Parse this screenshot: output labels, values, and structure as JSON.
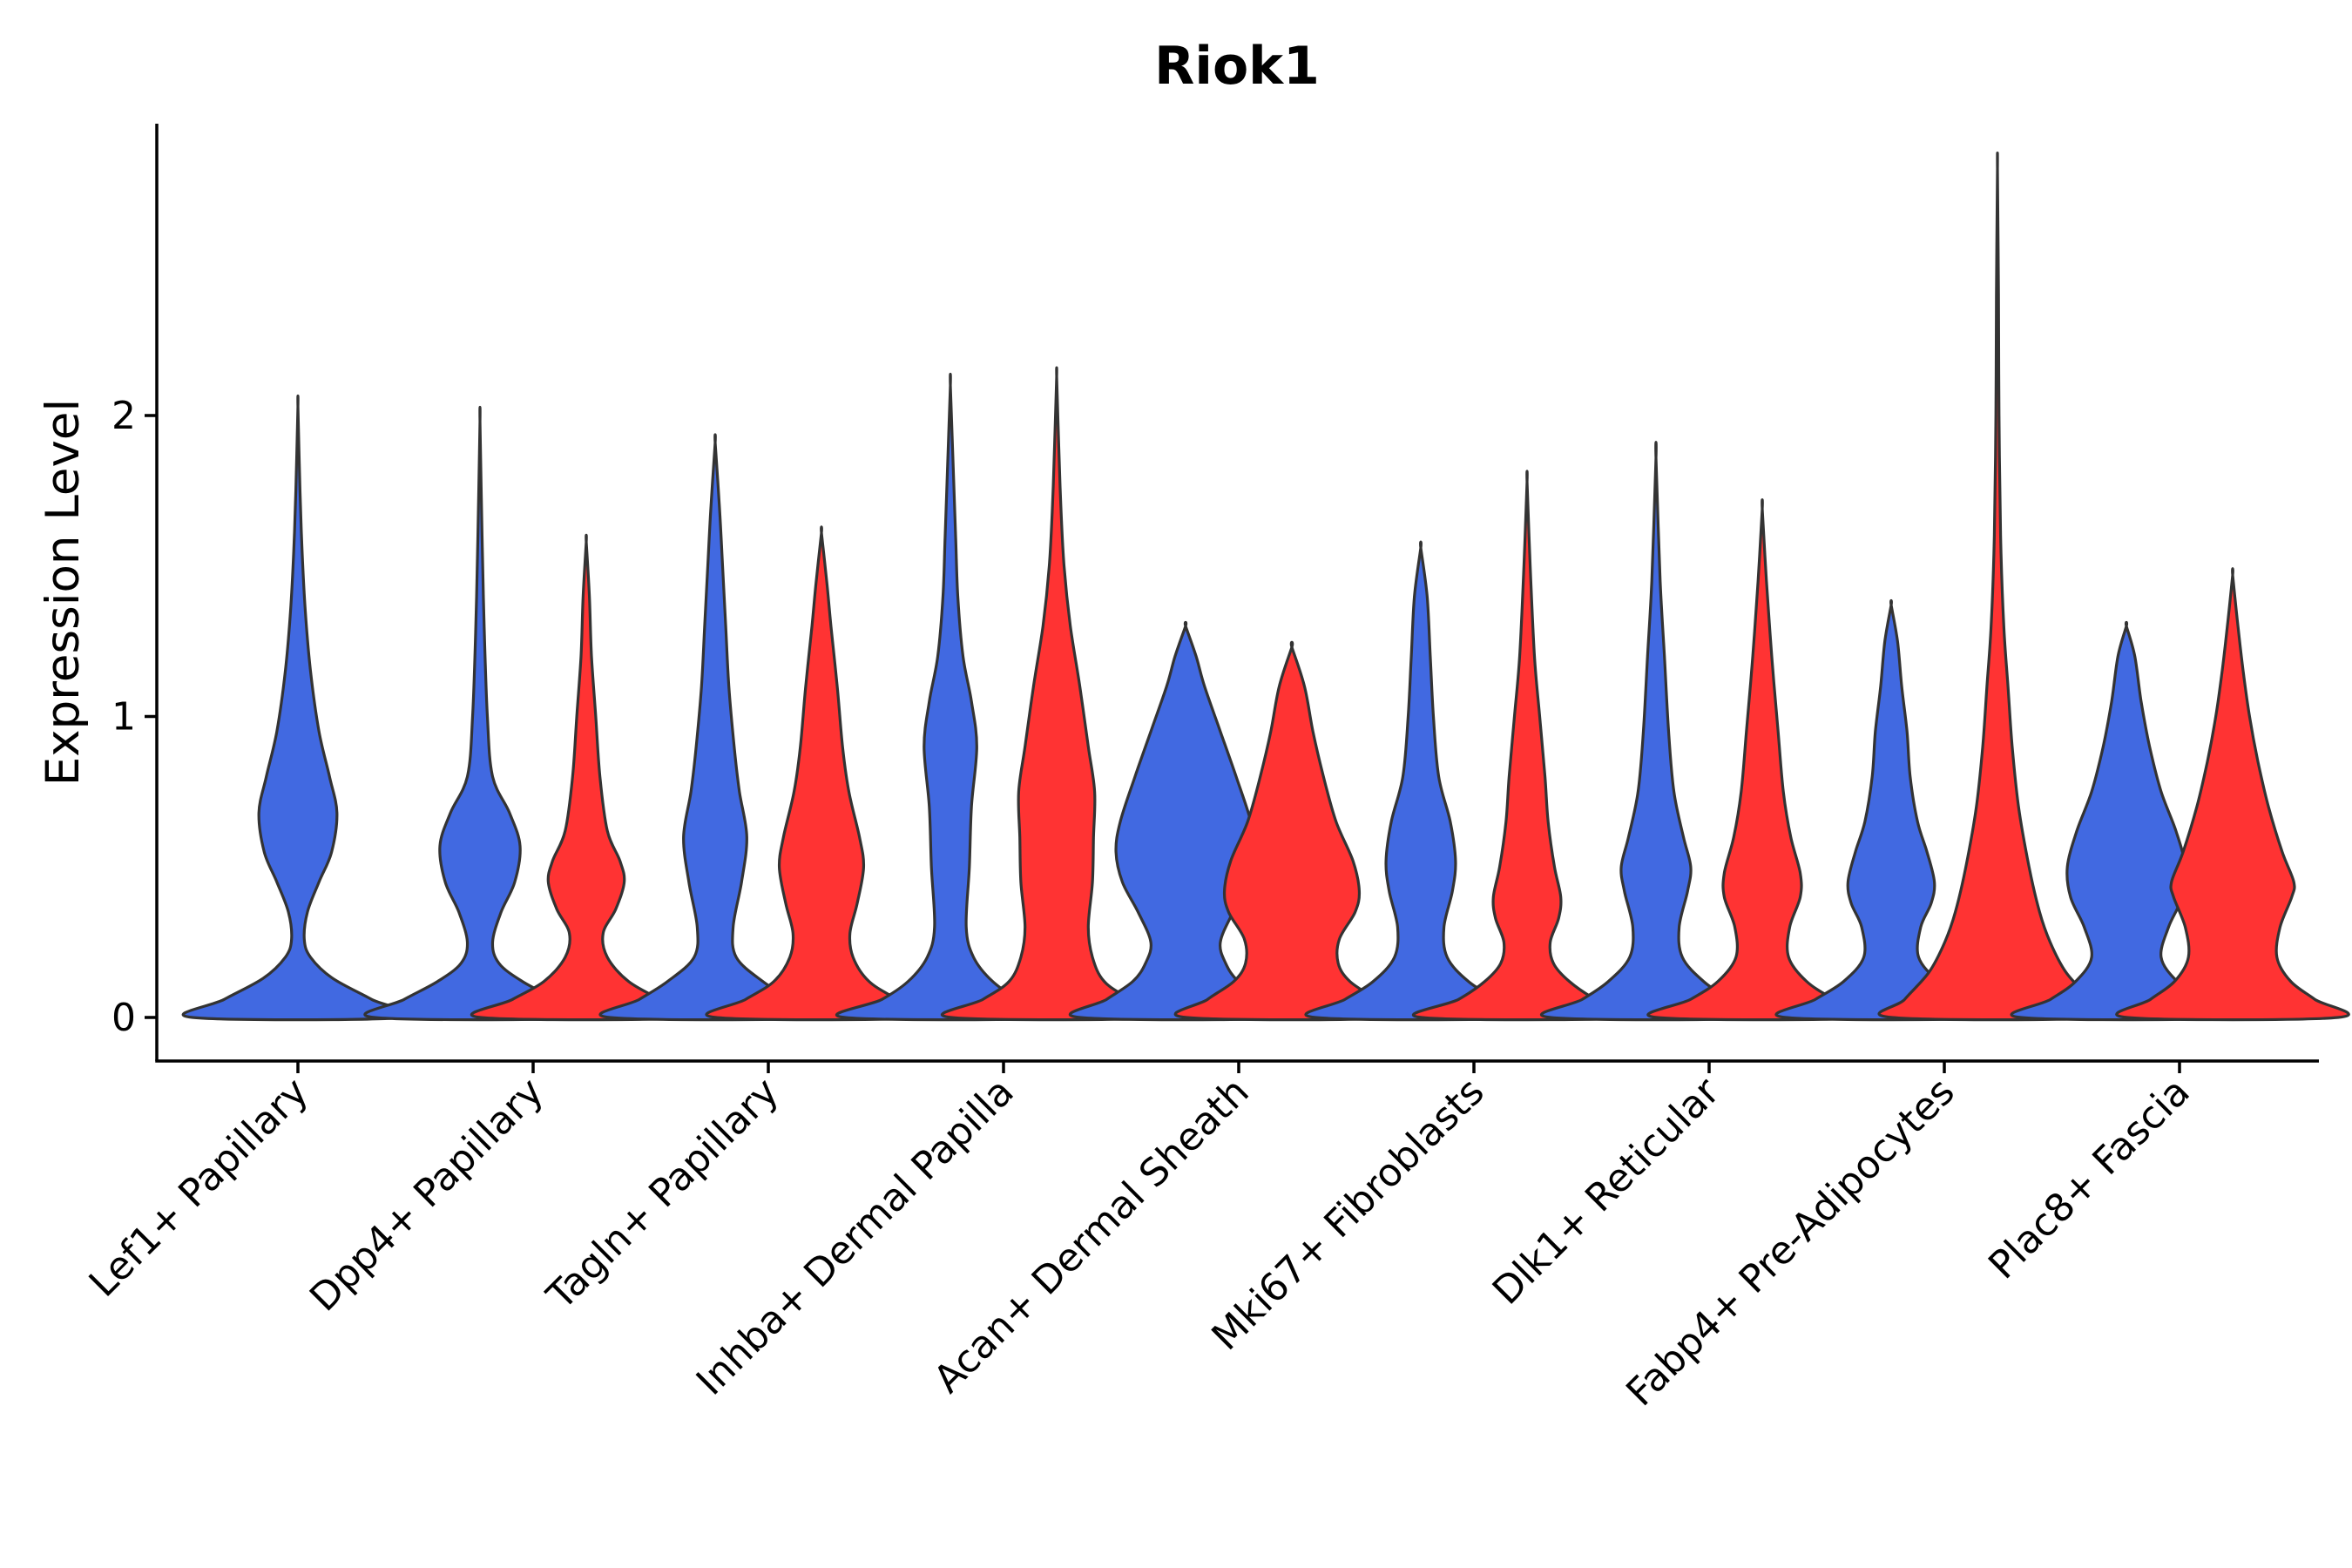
{
  "chart_data": {
    "type": "violin",
    "title": "Riok1",
    "ylabel": "Expression Level",
    "xlabel": "",
    "ylim": [
      -0.14,
      2.98
    ],
    "yticks": [
      0,
      1,
      2
    ],
    "grid": false,
    "colors": {
      "group_a": "#4169E1",
      "group_b": "#FF3333",
      "outline": "#333333"
    },
    "categories": [
      "Lef1+ Papillary",
      "Dpp4+ Papillary",
      "Tagln+ Papillary",
      "Inhba+ Dermal Papilla",
      "Acan+ Dermal Sheath",
      "Mki67+ Fibroblasts",
      "Dlk1+ Reticular",
      "Fabp4+ Pre-Adipocytes",
      "Plac8+ Fascia"
    ],
    "violins": [
      {
        "category": "Lef1+ Papillary",
        "group": "blue",
        "max": 2.03,
        "profile": [
          [
            0,
            1.0
          ],
          [
            0.06,
            0.7
          ],
          [
            0.13,
            0.33
          ],
          [
            0.2,
            0.12
          ],
          [
            0.26,
            0.06
          ],
          [
            0.35,
            0.09
          ],
          [
            0.45,
            0.2
          ],
          [
            0.55,
            0.32
          ],
          [
            0.68,
            0.37
          ],
          [
            0.8,
            0.3
          ],
          [
            0.95,
            0.2
          ],
          [
            1.15,
            0.12
          ],
          [
            1.35,
            0.07
          ],
          [
            1.55,
            0.04
          ],
          [
            1.75,
            0.02
          ],
          [
            2.03,
            0
          ]
        ]
      },
      {
        "category": "Dpp4+ Papillary",
        "group": "blue",
        "max": 1.98,
        "profile": [
          [
            0,
            1.0
          ],
          [
            0.06,
            0.72
          ],
          [
            0.12,
            0.4
          ],
          [
            0.18,
            0.18
          ],
          [
            0.25,
            0.12
          ],
          [
            0.35,
            0.2
          ],
          [
            0.45,
            0.33
          ],
          [
            0.57,
            0.38
          ],
          [
            0.68,
            0.28
          ],
          [
            0.8,
            0.12
          ],
          [
            1.0,
            0.07
          ],
          [
            1.3,
            0.04
          ],
          [
            1.6,
            0.02
          ],
          [
            1.98,
            0
          ]
        ]
      },
      {
        "category": "Dpp4+ Papillary",
        "group": "red",
        "max": 1.58,
        "profile": [
          [
            0,
            1.0
          ],
          [
            0.06,
            0.7
          ],
          [
            0.12,
            0.4
          ],
          [
            0.2,
            0.2
          ],
          [
            0.28,
            0.16
          ],
          [
            0.36,
            0.28
          ],
          [
            0.45,
            0.36
          ],
          [
            0.52,
            0.32
          ],
          [
            0.62,
            0.2
          ],
          [
            0.8,
            0.13
          ],
          [
            1.0,
            0.09
          ],
          [
            1.2,
            0.05
          ],
          [
            1.4,
            0.03
          ],
          [
            1.58,
            0
          ]
        ]
      },
      {
        "category": "Tagln+ Papillary",
        "group": "blue",
        "max": 1.91,
        "profile": [
          [
            0,
            1.0
          ],
          [
            0.06,
            0.72
          ],
          [
            0.12,
            0.45
          ],
          [
            0.2,
            0.2
          ],
          [
            0.3,
            0.17
          ],
          [
            0.45,
            0.25
          ],
          [
            0.6,
            0.3
          ],
          [
            0.75,
            0.23
          ],
          [
            0.9,
            0.18
          ],
          [
            1.1,
            0.13
          ],
          [
            1.3,
            0.1
          ],
          [
            1.5,
            0.07
          ],
          [
            1.7,
            0.04
          ],
          [
            1.91,
            0
          ]
        ]
      },
      {
        "category": "Tagln+ Papillary",
        "group": "red",
        "max": 1.61,
        "profile": [
          [
            0,
            1.0
          ],
          [
            0.06,
            0.72
          ],
          [
            0.12,
            0.45
          ],
          [
            0.2,
            0.3
          ],
          [
            0.28,
            0.27
          ],
          [
            0.38,
            0.34
          ],
          [
            0.5,
            0.4
          ],
          [
            0.6,
            0.36
          ],
          [
            0.75,
            0.26
          ],
          [
            0.9,
            0.2
          ],
          [
            1.1,
            0.15
          ],
          [
            1.3,
            0.09
          ],
          [
            1.45,
            0.05
          ],
          [
            1.61,
            0
          ]
        ]
      },
      {
        "category": "Inhba+ Dermal Papilla",
        "group": "blue",
        "max": 2.1,
        "profile": [
          [
            0,
            1.0
          ],
          [
            0.06,
            0.65
          ],
          [
            0.12,
            0.4
          ],
          [
            0.2,
            0.22
          ],
          [
            0.3,
            0.15
          ],
          [
            0.5,
            0.18
          ],
          [
            0.7,
            0.2
          ],
          [
            0.9,
            0.25
          ],
          [
            1.05,
            0.2
          ],
          [
            1.2,
            0.12
          ],
          [
            1.4,
            0.07
          ],
          [
            1.6,
            0.05
          ],
          [
            1.8,
            0.03
          ],
          [
            2.1,
            0
          ]
        ]
      },
      {
        "category": "Inhba+ Dermal Papilla",
        "group": "red",
        "max": 2.13,
        "profile": [
          [
            0,
            1.0
          ],
          [
            0.06,
            0.7
          ],
          [
            0.12,
            0.45
          ],
          [
            0.2,
            0.34
          ],
          [
            0.3,
            0.3
          ],
          [
            0.45,
            0.34
          ],
          [
            0.6,
            0.35
          ],
          [
            0.75,
            0.36
          ],
          [
            0.9,
            0.3
          ],
          [
            1.1,
            0.22
          ],
          [
            1.3,
            0.13
          ],
          [
            1.5,
            0.07
          ],
          [
            1.7,
            0.04
          ],
          [
            1.9,
            0.02
          ],
          [
            2.13,
            0
          ]
        ]
      },
      {
        "category": "Acan+ Dermal Sheath",
        "group": "blue",
        "max": 1.3,
        "profile": [
          [
            0,
            1.0
          ],
          [
            0.06,
            0.75
          ],
          [
            0.12,
            0.5
          ],
          [
            0.18,
            0.38
          ],
          [
            0.25,
            0.33
          ],
          [
            0.35,
            0.45
          ],
          [
            0.45,
            0.6
          ],
          [
            0.55,
            0.66
          ],
          [
            0.65,
            0.62
          ],
          [
            0.8,
            0.48
          ],
          [
            0.95,
            0.33
          ],
          [
            1.1,
            0.18
          ],
          [
            1.2,
            0.1
          ],
          [
            1.3,
            0
          ]
        ]
      },
      {
        "category": "Acan+ Dermal Sheath",
        "group": "red",
        "max": 1.23,
        "profile": [
          [
            0,
            1.0
          ],
          [
            0.06,
            0.8
          ],
          [
            0.12,
            0.55
          ],
          [
            0.18,
            0.44
          ],
          [
            0.26,
            0.45
          ],
          [
            0.35,
            0.6
          ],
          [
            0.42,
            0.64
          ],
          [
            0.52,
            0.58
          ],
          [
            0.65,
            0.42
          ],
          [
            0.8,
            0.3
          ],
          [
            0.95,
            0.2
          ],
          [
            1.1,
            0.12
          ],
          [
            1.23,
            0
          ]
        ]
      },
      {
        "category": "Mki67+ Fibroblasts",
        "group": "blue",
        "max": 1.56,
        "profile": [
          [
            0,
            1.0
          ],
          [
            0.06,
            0.72
          ],
          [
            0.12,
            0.45
          ],
          [
            0.2,
            0.25
          ],
          [
            0.3,
            0.22
          ],
          [
            0.42,
            0.3
          ],
          [
            0.52,
            0.33
          ],
          [
            0.65,
            0.28
          ],
          [
            0.8,
            0.17
          ],
          [
            1.0,
            0.12
          ],
          [
            1.2,
            0.09
          ],
          [
            1.4,
            0.06
          ],
          [
            1.56,
            0
          ]
        ]
      },
      {
        "category": "Mki67+ Fibroblasts",
        "group": "red",
        "max": 1.78,
        "profile": [
          [
            0,
            1.0
          ],
          [
            0.06,
            0.65
          ],
          [
            0.12,
            0.4
          ],
          [
            0.18,
            0.25
          ],
          [
            0.25,
            0.22
          ],
          [
            0.33,
            0.3
          ],
          [
            0.4,
            0.32
          ],
          [
            0.5,
            0.26
          ],
          [
            0.65,
            0.2
          ],
          [
            0.8,
            0.17
          ],
          [
            1.0,
            0.12
          ],
          [
            1.2,
            0.07
          ],
          [
            1.5,
            0.03
          ],
          [
            1.78,
            0
          ]
        ]
      },
      {
        "category": "Dlk1+ Reticular",
        "group": "blue",
        "max": 1.86,
        "profile": [
          [
            0,
            1.0
          ],
          [
            0.06,
            0.7
          ],
          [
            0.12,
            0.45
          ],
          [
            0.2,
            0.25
          ],
          [
            0.3,
            0.22
          ],
          [
            0.42,
            0.3
          ],
          [
            0.5,
            0.33
          ],
          [
            0.6,
            0.26
          ],
          [
            0.75,
            0.17
          ],
          [
            0.95,
            0.12
          ],
          [
            1.2,
            0.08
          ],
          [
            1.45,
            0.04
          ],
          [
            1.86,
            0
          ]
        ]
      },
      {
        "category": "Dlk1+ Reticular",
        "group": "red",
        "max": 1.69,
        "profile": [
          [
            0,
            1.0
          ],
          [
            0.06,
            0.68
          ],
          [
            0.12,
            0.42
          ],
          [
            0.2,
            0.25
          ],
          [
            0.3,
            0.26
          ],
          [
            0.4,
            0.36
          ],
          [
            0.48,
            0.36
          ],
          [
            0.6,
            0.27
          ],
          [
            0.75,
            0.2
          ],
          [
            0.95,
            0.15
          ],
          [
            1.2,
            0.09
          ],
          [
            1.45,
            0.04
          ],
          [
            1.69,
            0
          ]
        ]
      },
      {
        "category": "Fabp4+ Pre-Adipocytes",
        "group": "blue",
        "max": 1.37,
        "profile": [
          [
            0,
            1.0
          ],
          [
            0.06,
            0.72
          ],
          [
            0.12,
            0.45
          ],
          [
            0.2,
            0.26
          ],
          [
            0.3,
            0.28
          ],
          [
            0.38,
            0.38
          ],
          [
            0.45,
            0.41
          ],
          [
            0.55,
            0.34
          ],
          [
            0.65,
            0.25
          ],
          [
            0.8,
            0.18
          ],
          [
            0.95,
            0.15
          ],
          [
            1.1,
            0.1
          ],
          [
            1.25,
            0.06
          ],
          [
            1.37,
            0
          ]
        ]
      },
      {
        "category": "Fabp4+ Pre-Adipocytes",
        "group": "red",
        "max": 2.82,
        "profile": [
          [
            0,
            1.0
          ],
          [
            0.06,
            0.88
          ],
          [
            0.15,
            0.65
          ],
          [
            0.25,
            0.5
          ],
          [
            0.35,
            0.4
          ],
          [
            0.5,
            0.3
          ],
          [
            0.7,
            0.2
          ],
          [
            0.9,
            0.14
          ],
          [
            1.1,
            0.1
          ],
          [
            1.3,
            0.06
          ],
          [
            1.6,
            0.03
          ],
          [
            2.0,
            0.015
          ],
          [
            2.4,
            0.01
          ],
          [
            2.82,
            0
          ]
        ]
      },
      {
        "category": "Plac8+ Fascia",
        "group": "blue",
        "max": 1.3,
        "profile": [
          [
            0,
            1.0
          ],
          [
            0.06,
            0.72
          ],
          [
            0.12,
            0.48
          ],
          [
            0.2,
            0.33
          ],
          [
            0.3,
            0.4
          ],
          [
            0.4,
            0.53
          ],
          [
            0.5,
            0.56
          ],
          [
            0.62,
            0.47
          ],
          [
            0.75,
            0.33
          ],
          [
            0.9,
            0.22
          ],
          [
            1.05,
            0.14
          ],
          [
            1.2,
            0.08
          ],
          [
            1.3,
            0
          ]
        ]
      },
      {
        "category": "Plac8+ Fascia",
        "group": "red",
        "max": 1.47,
        "profile": [
          [
            0,
            1.0
          ],
          [
            0.06,
            0.78
          ],
          [
            0.12,
            0.55
          ],
          [
            0.2,
            0.42
          ],
          [
            0.3,
            0.45
          ],
          [
            0.4,
            0.56
          ],
          [
            0.45,
            0.58
          ],
          [
            0.55,
            0.47
          ],
          [
            0.7,
            0.34
          ],
          [
            0.85,
            0.24
          ],
          [
            1.0,
            0.16
          ],
          [
            1.15,
            0.1
          ],
          [
            1.3,
            0.05
          ],
          [
            1.47,
            0
          ]
        ]
      }
    ]
  }
}
